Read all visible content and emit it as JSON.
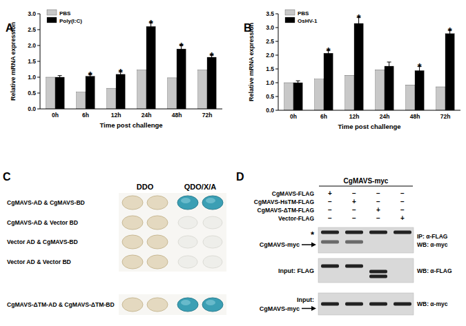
{
  "chart_data": [
    {
      "type": "bar",
      "title": "A",
      "x_label": "Time post challenge",
      "y_label": "Relative mRNA expression",
      "categories": [
        "0h",
        "6h",
        "12h",
        "24h",
        "48h",
        "72h"
      ],
      "series": [
        {
          "name": "PBS",
          "color": "#c8c8c8",
          "values": [
            1.0,
            0.53,
            0.65,
            1.23,
            0.98,
            1.23
          ]
        },
        {
          "name": "Poly(I:C)",
          "color": "#000000",
          "values": [
            1.0,
            1.03,
            1.09,
            2.6,
            1.89,
            1.63
          ],
          "errors": [
            0.05,
            0.06,
            0.08,
            0.12,
            0.12,
            0.07
          ]
        }
      ],
      "ylim": [
        0,
        3
      ],
      "yticks": [
        {
          "value": 0,
          "label": "0.0"
        },
        0.5,
        {
          "value": 1,
          "label": "1.0"
        },
        1.5,
        {
          "value": 2,
          "label": "2.0"
        },
        2.5,
        {
          "value": 3,
          "label": "3.0"
        }
      ],
      "legend": "top-left",
      "annotations": [
        {
          "x": "6h",
          "text": "*"
        },
        {
          "x": "12h",
          "text": "*"
        },
        {
          "x": "24h",
          "text": "*"
        },
        {
          "x": "48h",
          "text": "*"
        },
        {
          "x": "72h",
          "text": "*"
        }
      ]
    },
    {
      "type": "bar",
      "title": "B",
      "x_label": "Time post challenge",
      "y_label": "Relative mRNA expression",
      "categories": [
        "0h",
        "6h",
        "12h",
        "24h",
        "48h",
        "72h"
      ],
      "series": [
        {
          "name": "PBS",
          "color": "#c8c8c8",
          "values": [
            1.0,
            1.13,
            1.27,
            1.47,
            0.92,
            0.85
          ]
        },
        {
          "name": "OsHV-1",
          "color": "#000000",
          "values": [
            1.0,
            2.07,
            3.15,
            1.6,
            1.44,
            2.78
          ],
          "errors": [
            0.07,
            0.1,
            0.22,
            0.15,
            0.15,
            0.12
          ]
        }
      ],
      "ylim": [
        0,
        3.5
      ],
      "yticks": [
        {
          "value": 0,
          "label": "0.0"
        },
        0.5,
        {
          "value": 1,
          "label": "1.0"
        },
        1.5,
        {
          "value": 2,
          "label": "2.0"
        },
        2.5,
        {
          "value": 3,
          "label": "3.0"
        },
        3.5
      ],
      "legend": "top-left",
      "annotations": [
        {
          "x": "6h",
          "text": "*"
        },
        {
          "x": "12h",
          "text": "*"
        },
        {
          "x": "48h",
          "text": "*"
        },
        {
          "x": "72h",
          "text": "*"
        }
      ]
    }
  ],
  "panel_c": {
    "label": "C",
    "columns": [
      "DDO",
      "QDO/X/A"
    ],
    "rows": [
      {
        "label": "CgMAVS-AD & CgMAVS-BD",
        "interaction": true
      },
      {
        "label": "CgMAVS-AD & Vector BD",
        "interaction": false
      },
      {
        "label": "Vector AD & CgMAVS-BD",
        "interaction": false
      },
      {
        "label": "Vector AD & Vector BD",
        "interaction": false
      },
      {
        "label": "CgMAVS-ΔTM-AD & CgMAVS-ΔTM-BD",
        "interaction": true
      }
    ]
  },
  "panel_d": {
    "label": "D",
    "title": "CgMAVS-myc",
    "conditions": [
      {
        "label": "CgMAVS-FLAG",
        "signs": [
          "+",
          "−",
          "−",
          "−"
        ]
      },
      {
        "label": "CgMAVS-HsTM-FLAG",
        "signs": [
          "−",
          "+",
          "−",
          "−"
        ]
      },
      {
        "label": "CgMAVS-ΔTM-FLAG",
        "signs": [
          "−",
          "−",
          "+",
          "−"
        ]
      },
      {
        "label": "Vector-FLAG",
        "signs": [
          "−",
          "−",
          "−",
          "+"
        ]
      }
    ],
    "blots": [
      {
        "left": [
          "*",
          "CgMAVS-myc"
        ],
        "right": [
          "IP: α-FLAG",
          "WB: α-myc"
        ],
        "arrow": true,
        "bands": [
          [
            true,
            true,
            true,
            true
          ],
          [
            true,
            true,
            false,
            false
          ]
        ]
      },
      {
        "left": [
          "Input: FLAG"
        ],
        "right": [
          "WB: α-FLAG"
        ],
        "arrow": false,
        "bands": [
          [
            true,
            true,
            false,
            false
          ],
          [
            false,
            false,
            true,
            false
          ],
          [
            false,
            false,
            true,
            false
          ]
        ]
      },
      {
        "left": [
          "Input:",
          "CgMAVS-myc"
        ],
        "right": [
          "WB: α-myc"
        ],
        "arrow": true,
        "bands": [
          [
            true,
            true,
            true,
            true
          ]
        ]
      }
    ]
  }
}
